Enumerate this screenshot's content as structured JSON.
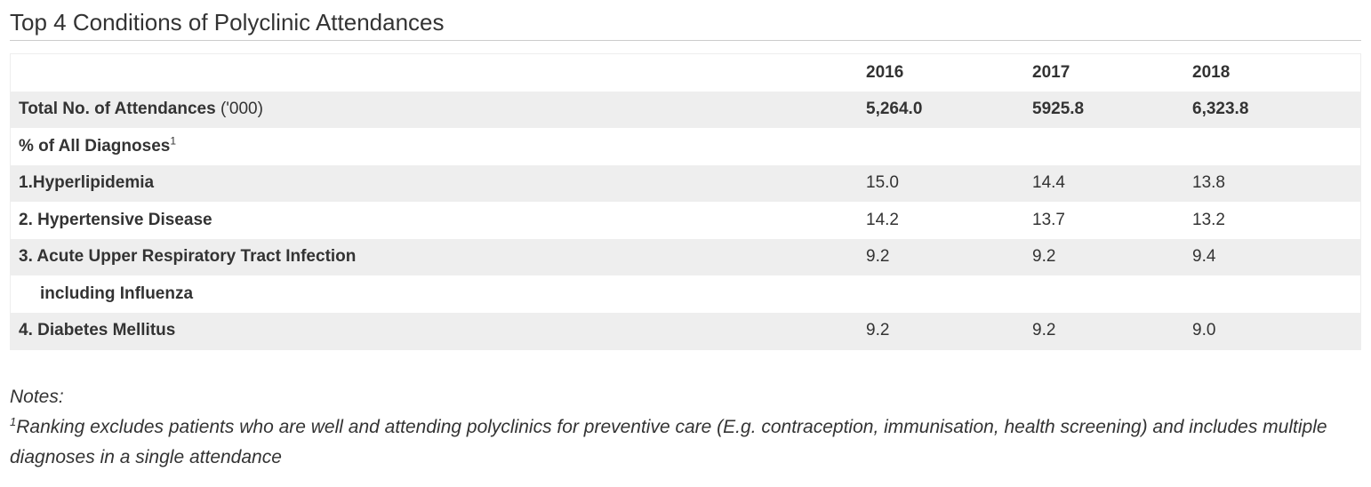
{
  "page": {
    "title": "Top 4 Conditions of Polyclinic Attendances"
  },
  "table": {
    "years": [
      "2016",
      "2017",
      "2018"
    ],
    "total_row": {
      "label": "Total No. of Attendances",
      "unit": "('000)",
      "values": [
        "5,264.0",
        "5925.8",
        "6,323.8"
      ]
    },
    "pct_header": {
      "label": "% of All Diagnoses",
      "footnote_mark": "1"
    },
    "conditions": [
      {
        "label": "1.Hyperlipidemia",
        "values": [
          "15.0",
          "14.4",
          "13.8"
        ]
      },
      {
        "label": "2. Hypertensive Disease",
        "values": [
          "14.2",
          "13.7",
          "13.2"
        ]
      },
      {
        "label": "3. Acute Upper Respiratory Tract Infection",
        "values": [
          "9.2",
          "9.2",
          "9.4"
        ]
      },
      {
        "label": "including Influenza"
      },
      {
        "label": "4. Diabetes Mellitus",
        "values": [
          "9.2",
          "9.2",
          "9.0"
        ]
      }
    ]
  },
  "notes": {
    "heading": "Notes:",
    "footnote_mark": "1",
    "text": "Ranking excludes patients who are well and attending polyclinics for preventive care (E.g. contraception, immunisation, health screening) and includes multiple diagnoses in a single attendance"
  }
}
